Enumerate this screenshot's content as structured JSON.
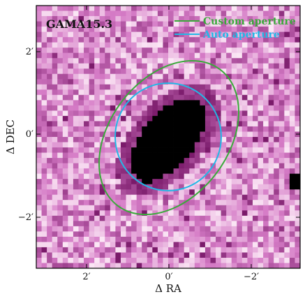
{
  "object_label": "GAMA15.3",
  "axes": {
    "xlabel": "Δ RA",
    "ylabel": "Δ DEC",
    "x_ticks": [
      "2′",
      "0′",
      "−2′"
    ],
    "y_ticks": [
      "2′",
      "0′",
      "−2′"
    ]
  },
  "legend": {
    "placement": "top-right",
    "items": [
      {
        "label": "Custom aperture",
        "color": "#3aaa3a"
      },
      {
        "label": "Auto aperture",
        "color": "#22b8e6"
      }
    ]
  },
  "colors": {
    "pixel_light": "#fbe7f5",
    "pixel_mid": "#d57bc6",
    "pixel_dark": "#7a1a6a",
    "source_core": "#000000",
    "custom_aperture": "#3aaa3a",
    "auto_aperture": "#22b8e6"
  },
  "image_grid": {
    "columns": 50,
    "rows": 50
  }
}
